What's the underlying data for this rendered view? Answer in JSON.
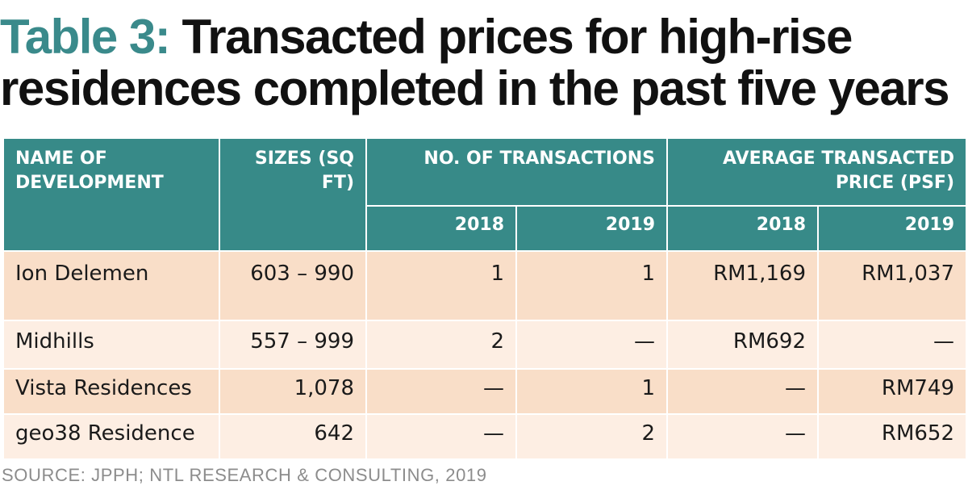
{
  "title": {
    "prefix": "Table 3:",
    "line1": "Transacted prices for high-rise",
    "line2": "residences completed in the past five years"
  },
  "chart_data": {
    "type": "table",
    "headers": {
      "name": "NAME OF DEVELOPMENT",
      "sizes": "SIZES (SQ FT)",
      "transactions": "NO. OF TRANSACTIONS",
      "price": "AVERAGE TRANSACTED PRICE (PSF)",
      "years": [
        "2018",
        "2019",
        "2018",
        "2019"
      ]
    },
    "rows": [
      {
        "name": "Ion Delemen",
        "sizes": "603 – 990",
        "tx_2018": "1",
        "tx_2019": "1",
        "price_2018": "RM1,169",
        "price_2019": "RM1,037"
      },
      {
        "name": "Midhills",
        "sizes": "557 – 999",
        "tx_2018": "2",
        "tx_2019": "—",
        "price_2018": "RM692",
        "price_2019": "—"
      },
      {
        "name": "Vista Residences",
        "sizes": "1,078",
        "tx_2018": "—",
        "tx_2019": "1",
        "price_2018": "—",
        "price_2019": "RM749"
      },
      {
        "name": "geo38 Residence",
        "sizes": "642",
        "tx_2018": "—",
        "tx_2019": "2",
        "price_2018": "—",
        "price_2019": "RM652"
      }
    ]
  },
  "source": "SOURCE: JPPH; NTL RESEARCH & CONSULTING, 2019",
  "colors": {
    "accent": "#3a8a8b",
    "header_bg": "#378a88",
    "row_dark": "#f9dec8",
    "row_light": "#fdeee3"
  }
}
